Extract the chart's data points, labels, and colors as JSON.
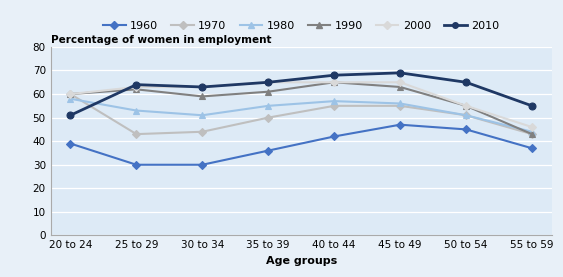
{
  "age_groups": [
    "20 to 24",
    "25 to 29",
    "30 to 34",
    "35 to 39",
    "40 to 44",
    "45 to 49",
    "50 to 54",
    "55 to 59"
  ],
  "series": {
    "1960": [
      39,
      30,
      30,
      36,
      42,
      47,
      45,
      37
    ],
    "1970": [
      60,
      43,
      44,
      50,
      55,
      55,
      51,
      43
    ],
    "1980": [
      58,
      53,
      51,
      55,
      57,
      56,
      51,
      44
    ],
    "1990": [
      60,
      62,
      59,
      61,
      65,
      63,
      55,
      43
    ],
    "2000": [
      60,
      63,
      63,
      65,
      65,
      65,
      55,
      46
    ],
    "2010": [
      51,
      64,
      63,
      65,
      68,
      69,
      65,
      55
    ]
  },
  "colors": {
    "1960": "#4472C4",
    "1970": "#BFBFBF",
    "1980": "#9DC3E6",
    "1990": "#808080",
    "2000": "#D9D9D9",
    "2010": "#1F3864"
  },
  "markers": {
    "1960": "D",
    "1970": "D",
    "1980": "^",
    "1990": "^",
    "2000": "D",
    "2010": "o"
  },
  "series_order": [
    "1960",
    "1970",
    "1980",
    "1990",
    "2000",
    "2010"
  ],
  "ylabel": "Percentage of women in employment",
  "xlabel": "Age groups",
  "ylim": [
    0,
    80
  ],
  "yticks": [
    0,
    10,
    20,
    30,
    40,
    50,
    60,
    70,
    80
  ],
  "plot_bg": "#DDEAF6",
  "figure_bg": "#E8F0F8",
  "legend_bg": "#D6E4F5",
  "legend_edge": "#B8C8DC"
}
